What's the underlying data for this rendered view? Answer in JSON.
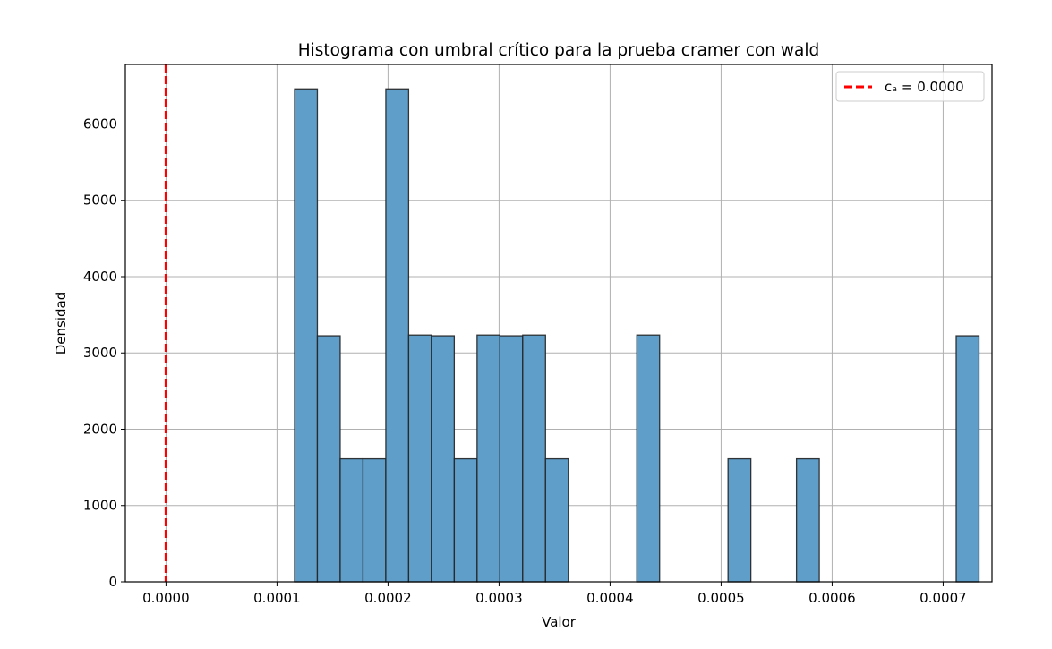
{
  "chart_data": {
    "type": "bar",
    "title": "Histograma con umbral crítico para la prueba cramer con  wald",
    "xlabel": "Valor",
    "ylabel": "Densidad",
    "xlim": [
      -3.66e-05,
      0.000744
    ],
    "ylim": [
      0,
      6780
    ],
    "xticks": [
      0.0,
      0.0001,
      0.0002,
      0.0003,
      0.0004,
      0.0005,
      0.0006,
      0.0007
    ],
    "xtick_labels": [
      "0.0000",
      "0.0001",
      "0.0002",
      "0.0003",
      "0.0004",
      "0.0005",
      "0.0006",
      "0.0007"
    ],
    "yticks": [
      0,
      1000,
      2000,
      3000,
      4000,
      5000,
      6000
    ],
    "ytick_labels": [
      "0",
      "1000",
      "2000",
      "3000",
      "4000",
      "5000",
      "6000"
    ],
    "grid": true,
    "bin_start": 0.0001158,
    "bin_width": 2.055e-05,
    "values": [
      6460,
      3225,
      1612,
      1612,
      6460,
      3235,
      3225,
      1612,
      3235,
      3225,
      3235,
      1612,
      0,
      0,
      0,
      3235,
      0,
      0,
      0,
      1612,
      0,
      0,
      1612,
      0,
      0,
      0,
      0,
      0,
      0,
      3225
    ],
    "bar_color": "#5f9ec9",
    "bar_edge_color": "#222222",
    "threshold": {
      "value": 0.0,
      "label": "cₐ = 0.0000",
      "color": "#ff0000"
    },
    "legend_position": "top-right"
  }
}
